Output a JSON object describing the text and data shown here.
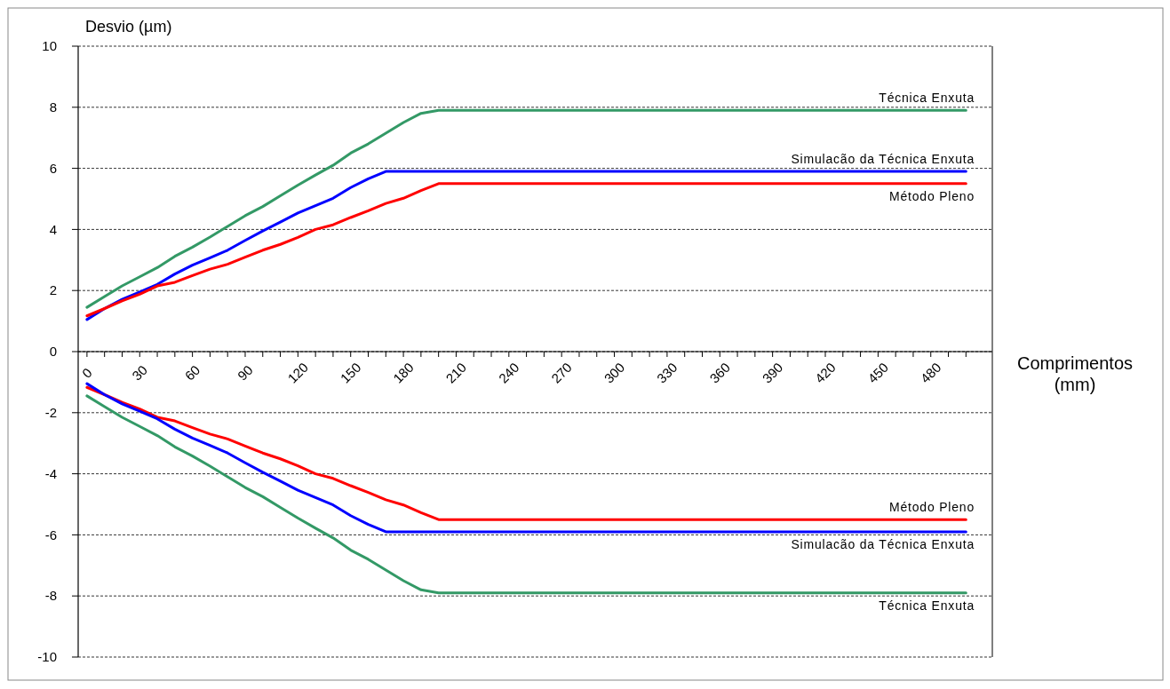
{
  "chart_data": {
    "type": "line",
    "xlabel": "Comprimentos (mm)",
    "ylabel": "Desvio  (µm)",
    "x": [
      0,
      10,
      20,
      30,
      40,
      50,
      60,
      70,
      80,
      90,
      100,
      110,
      120,
      130,
      140,
      150,
      160,
      170,
      180,
      190,
      200,
      210,
      220,
      230,
      240,
      250,
      260,
      270,
      280,
      290,
      300,
      310,
      320,
      330,
      340,
      350,
      360,
      370,
      380,
      390,
      400,
      410,
      420,
      430,
      440,
      450,
      460,
      470,
      480,
      490,
      500
    ],
    "xlim": [
      -5,
      515
    ],
    "xticks": [
      0,
      {
        "value": 10,
        "label": null
      },
      {
        "value": 20,
        "label": null
      },
      30,
      {
        "value": 40,
        "label": null
      },
      {
        "value": 50,
        "label": null
      },
      60,
      {
        "value": 70,
        "label": null
      },
      {
        "value": 80,
        "label": null
      },
      90,
      {
        "value": 100,
        "label": null
      },
      {
        "value": 110,
        "label": null
      },
      120,
      {
        "value": 130,
        "label": null
      },
      {
        "value": 140,
        "label": null
      },
      150,
      {
        "value": 160,
        "label": null
      },
      {
        "value": 170,
        "label": null
      },
      180,
      {
        "value": 190,
        "label": null
      },
      {
        "value": 200,
        "label": null
      },
      210,
      {
        "value": 220,
        "label": null
      },
      {
        "value": 230,
        "label": null
      },
      240,
      {
        "value": 250,
        "label": null
      },
      {
        "value": 260,
        "label": null
      },
      270,
      {
        "value": 280,
        "label": null
      },
      {
        "value": 290,
        "label": null
      },
      300,
      {
        "value": 310,
        "label": null
      },
      {
        "value": 320,
        "label": null
      },
      330,
      {
        "value": 340,
        "label": null
      },
      {
        "value": 350,
        "label": null
      },
      360,
      {
        "value": 370,
        "label": null
      },
      {
        "value": 380,
        "label": null
      },
      390,
      {
        "value": 400,
        "label": null
      },
      {
        "value": 410,
        "label": null
      },
      420,
      {
        "value": 430,
        "label": null
      },
      {
        "value": 440,
        "label": null
      },
      450,
      {
        "value": 460,
        "label": null
      },
      {
        "value": 470,
        "label": null
      },
      480,
      {
        "value": 490,
        "label": null
      },
      {
        "value": 500,
        "label": null
      }
    ],
    "ylim": [
      -10,
      10
    ],
    "yticks": [
      -10,
      -8,
      -6,
      -4,
      -2,
      0,
      2,
      4,
      6,
      8,
      10
    ],
    "grid": "y",
    "legend": false,
    "marker": "none",
    "line_style": "solid",
    "series": [
      {
        "name": "Técnica Enxuta",
        "color": "#339966",
        "values": [
          1.45,
          1.8,
          2.15,
          2.45,
          2.75,
          3.12,
          3.42,
          3.75,
          4.1,
          4.45,
          4.75,
          5.1,
          5.45,
          5.78,
          6.1,
          6.5,
          6.8,
          7.15,
          7.5,
          7.8,
          7.9,
          7.9,
          7.9,
          7.9,
          7.9,
          7.9,
          7.9,
          7.9,
          7.9,
          7.9,
          7.9,
          7.9,
          7.9,
          7.9,
          7.9,
          7.9,
          7.9,
          7.9,
          7.9,
          7.9,
          7.9,
          7.9,
          7.9,
          7.9,
          7.9,
          7.9,
          7.9,
          7.9,
          7.9,
          7.9,
          7.9
        ]
      },
      {
        "name": "Simulacão da Técnica Enxuta",
        "color": "#0000ff",
        "values": [
          1.05,
          1.41,
          1.71,
          1.95,
          2.2,
          2.54,
          2.83,
          3.07,
          3.32,
          3.64,
          3.95,
          4.24,
          4.54,
          4.78,
          5.02,
          5.37,
          5.66,
          5.9,
          5.9,
          5.9,
          5.9,
          5.9,
          5.9,
          5.9,
          5.9,
          5.9,
          5.9,
          5.9,
          5.9,
          5.9,
          5.9,
          5.9,
          5.9,
          5.9,
          5.9,
          5.9,
          5.9,
          5.9,
          5.9,
          5.9,
          5.9,
          5.9,
          5.9,
          5.9,
          5.9,
          5.9,
          5.9,
          5.9,
          5.9,
          5.9,
          5.9
        ]
      },
      {
        "name": "Método Pleno",
        "color": "#ff0000",
        "values": [
          1.17,
          1.41,
          1.66,
          1.88,
          2.15,
          2.27,
          2.49,
          2.7,
          2.86,
          3.09,
          3.32,
          3.51,
          3.74,
          4.0,
          4.15,
          4.39,
          4.61,
          4.85,
          5.02,
          5.27,
          5.5,
          5.5,
          5.5,
          5.5,
          5.5,
          5.5,
          5.5,
          5.5,
          5.5,
          5.5,
          5.5,
          5.5,
          5.5,
          5.5,
          5.5,
          5.5,
          5.5,
          5.5,
          5.5,
          5.5,
          5.5,
          5.5,
          5.5,
          5.5,
          5.5,
          5.5,
          5.5,
          5.5,
          5.5,
          5.5,
          5.5
        ]
      },
      {
        "name": "Método Pleno",
        "color": "#ff0000",
        "values": [
          -1.17,
          -1.41,
          -1.66,
          -1.88,
          -2.15,
          -2.27,
          -2.49,
          -2.7,
          -2.86,
          -3.09,
          -3.32,
          -3.51,
          -3.74,
          -4.0,
          -4.15,
          -4.39,
          -4.61,
          -4.85,
          -5.02,
          -5.27,
          -5.5,
          -5.5,
          -5.5,
          -5.5,
          -5.5,
          -5.5,
          -5.5,
          -5.5,
          -5.5,
          -5.5,
          -5.5,
          -5.5,
          -5.5,
          -5.5,
          -5.5,
          -5.5,
          -5.5,
          -5.5,
          -5.5,
          -5.5,
          -5.5,
          -5.5,
          -5.5,
          -5.5,
          -5.5,
          -5.5,
          -5.5,
          -5.5,
          -5.5,
          -5.5,
          -5.5
        ]
      },
      {
        "name": "Simulacão da Técnica Enxuta",
        "color": "#0000ff",
        "values": [
          -1.05,
          -1.41,
          -1.71,
          -1.95,
          -2.2,
          -2.54,
          -2.83,
          -3.07,
          -3.32,
          -3.64,
          -3.95,
          -4.24,
          -4.54,
          -4.78,
          -5.02,
          -5.37,
          -5.66,
          -5.9,
          -5.9,
          -5.9,
          -5.9,
          -5.9,
          -5.9,
          -5.9,
          -5.9,
          -5.9,
          -5.9,
          -5.9,
          -5.9,
          -5.9,
          -5.9,
          -5.9,
          -5.9,
          -5.9,
          -5.9,
          -5.9,
          -5.9,
          -5.9,
          -5.9,
          -5.9,
          -5.9,
          -5.9,
          -5.9,
          -5.9,
          -5.9,
          -5.9,
          -5.9,
          -5.9,
          -5.9,
          -5.9,
          -5.9
        ]
      },
      {
        "name": "Técnica Enxuta",
        "color": "#339966",
        "values": [
          -1.45,
          -1.8,
          -2.15,
          -2.45,
          -2.75,
          -3.12,
          -3.42,
          -3.75,
          -4.1,
          -4.45,
          -4.75,
          -5.1,
          -5.45,
          -5.78,
          -6.1,
          -6.5,
          -6.8,
          -7.15,
          -7.5,
          -7.8,
          -7.9,
          -7.9,
          -7.9,
          -7.9,
          -7.9,
          -7.9,
          -7.9,
          -7.9,
          -7.9,
          -7.9,
          -7.9,
          -7.9,
          -7.9,
          -7.9,
          -7.9,
          -7.9,
          -7.9,
          -7.9,
          -7.9,
          -7.9,
          -7.9,
          -7.9,
          -7.9,
          -7.9,
          -7.9,
          -7.9,
          -7.9,
          -7.9,
          -7.9,
          -7.9,
          -7.9
        ]
      }
    ]
  }
}
